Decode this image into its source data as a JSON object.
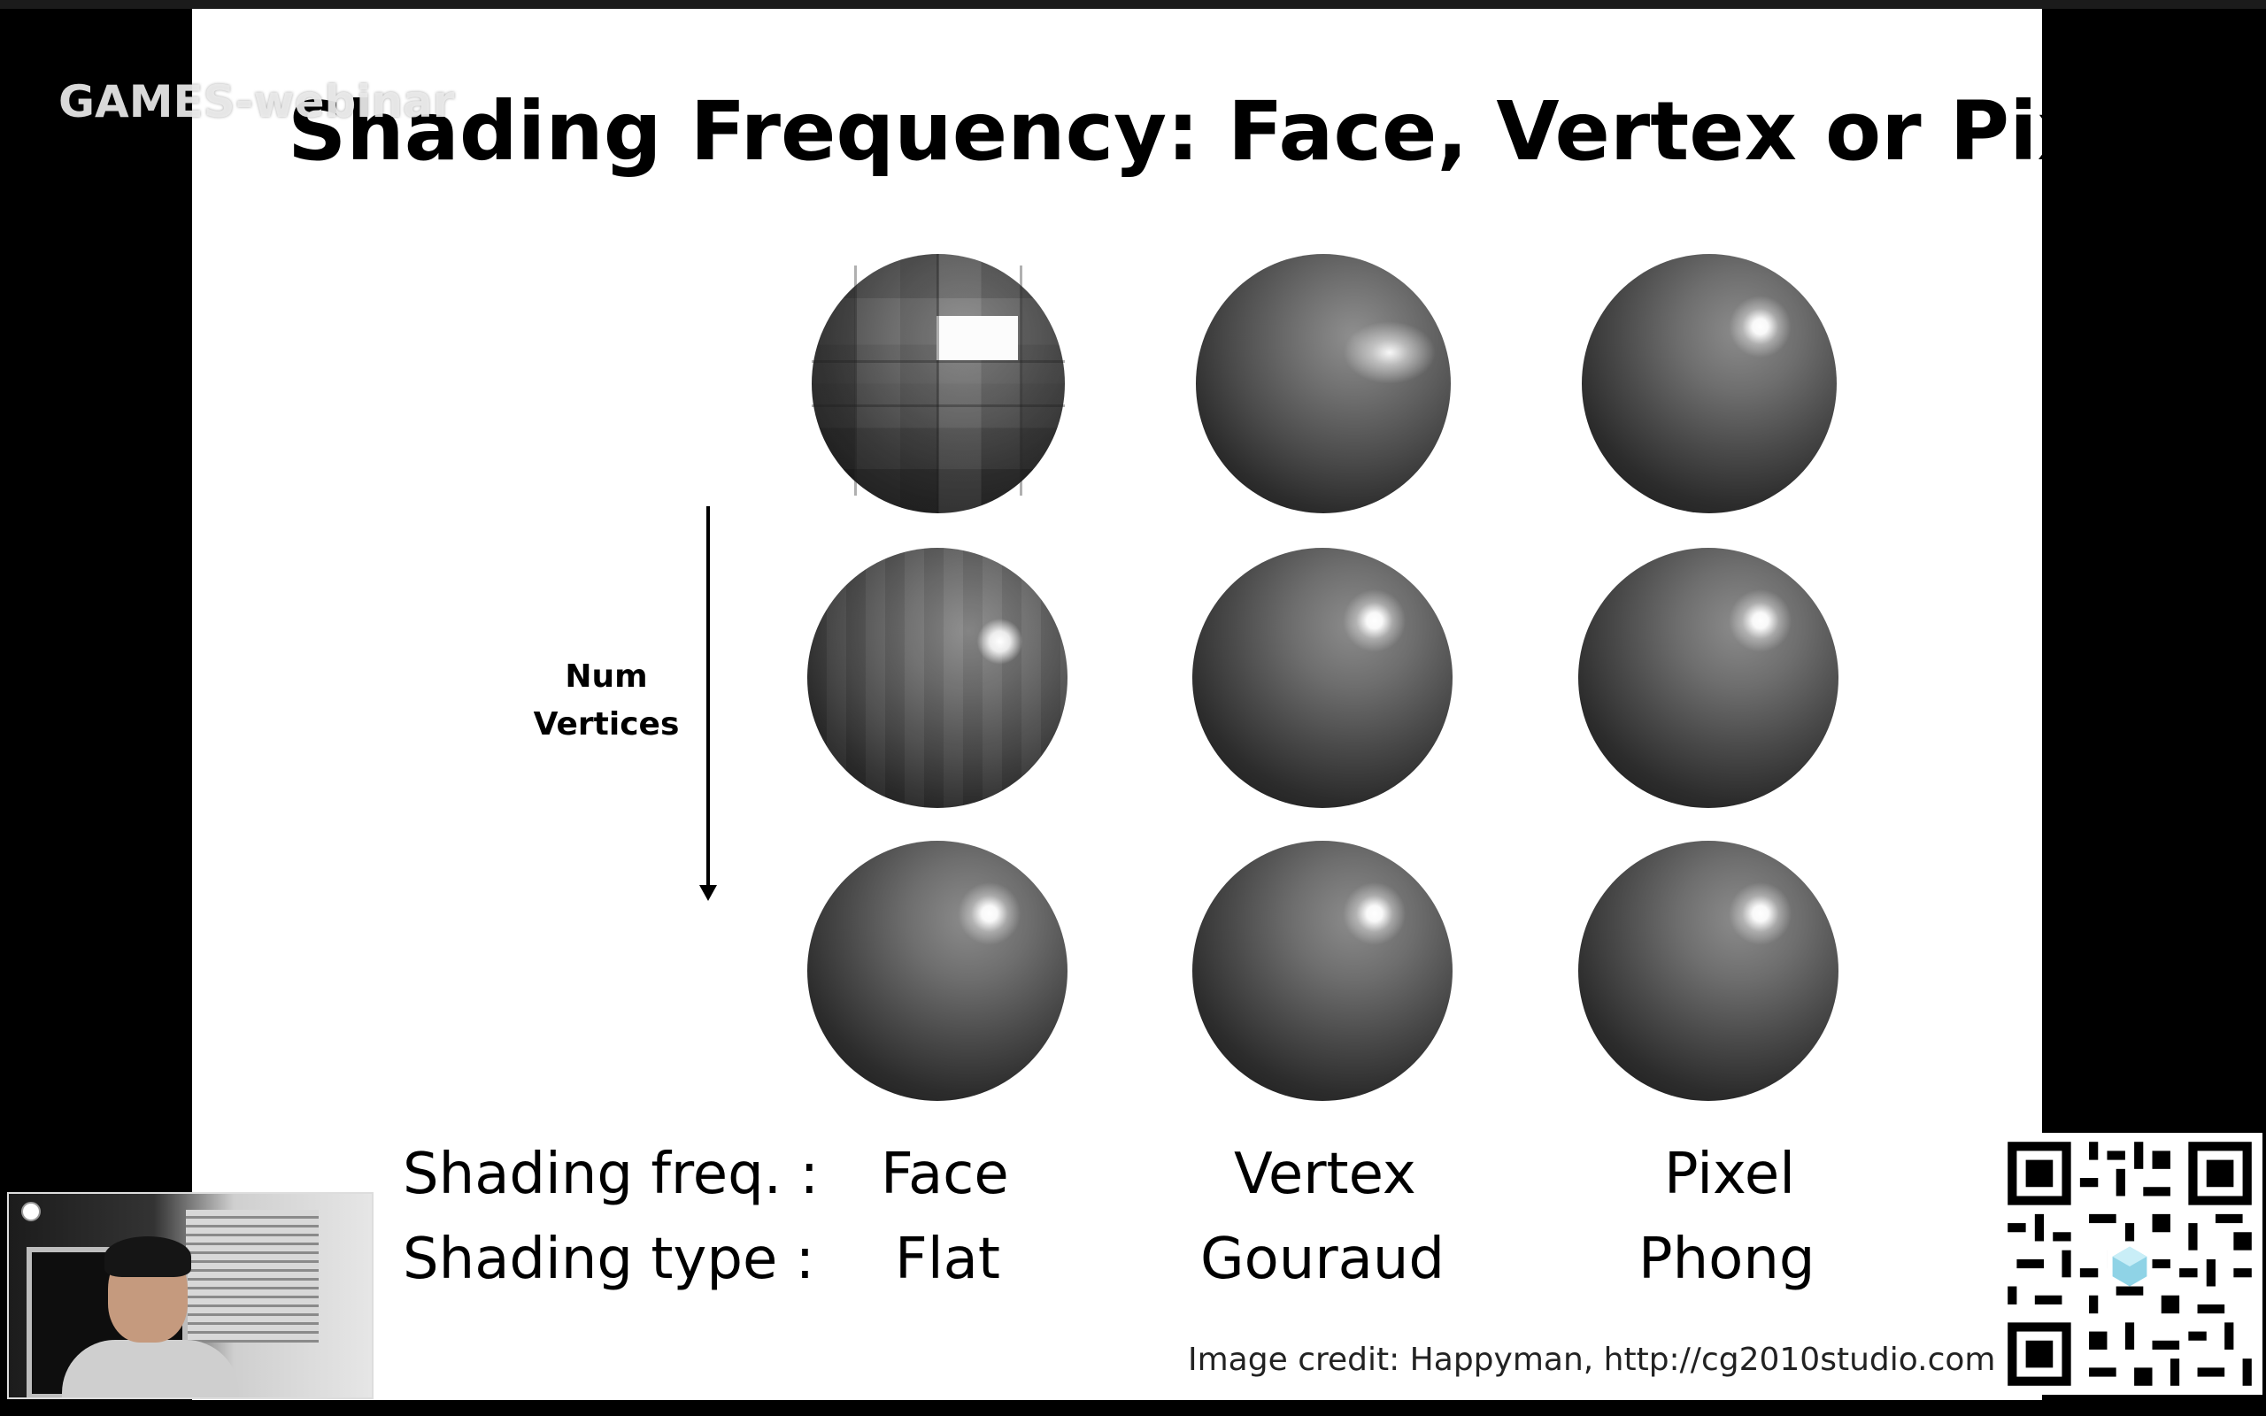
{
  "watermark": "GAMES-webinar",
  "slide": {
    "title": "Shading Frequency: Face, Vertex or Pixel",
    "axis_label_line1": "Num",
    "axis_label_line2": "Vertices",
    "freq_label": "Shading freq. :",
    "type_label": "Shading type :",
    "columns": [
      {
        "freq": "Face",
        "type": "Flat"
      },
      {
        "freq": "Vertex",
        "type": "Gouraud"
      },
      {
        "freq": "Pixel",
        "type": "Phong"
      }
    ],
    "credit": "Image credit: Happyman, http://cg2010studio.com"
  },
  "colors": {
    "background": "#000000",
    "slide_background": "#ffffff",
    "text": "#000000"
  },
  "icons": {
    "qr": "qr-code-icon",
    "arrow": "down-arrow-icon"
  }
}
